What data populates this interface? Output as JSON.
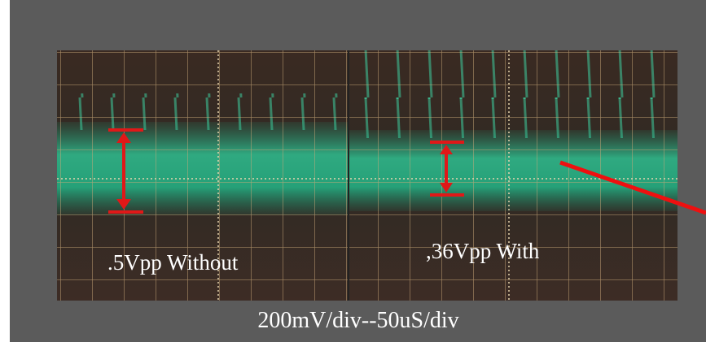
{
  "panels": [
    {
      "label": ".5Vpp Without"
    },
    {
      "label": ",36Vpp With"
    }
  ],
  "caption": "200mV/div--50uS/div"
}
